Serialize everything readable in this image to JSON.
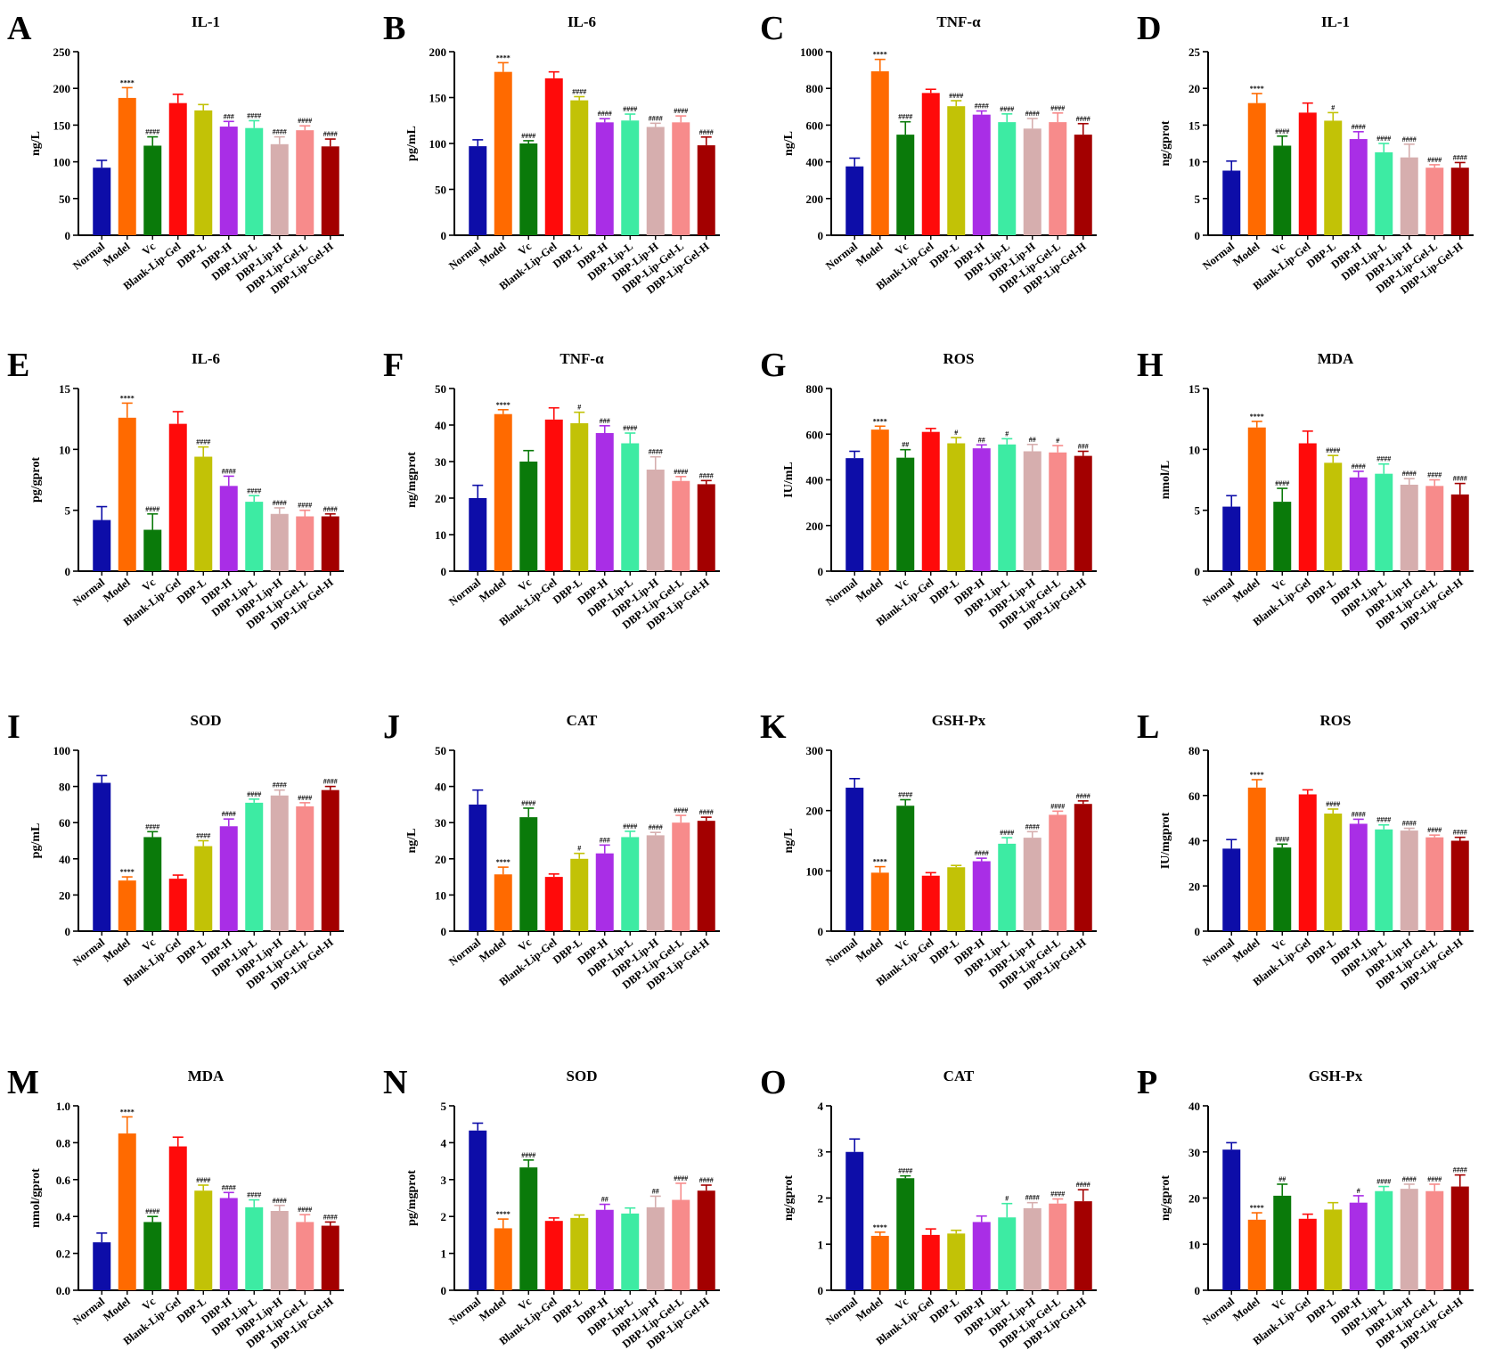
{
  "categories": [
    "Normal",
    "Model",
    "Vc",
    "Blank-Lip-Gel",
    "DBP-L",
    "DBP-H",
    "DBP-Lip-L",
    "DBP-Lip-H",
    "DBP-Lip-Gel-L",
    "DBP-Lip-Gel-H"
  ],
  "colors": [
    "#0d0da8",
    "#ff6a00",
    "#0a7a0a",
    "#ff0a0a",
    "#c2c206",
    "#a92ee6",
    "#3deba3",
    "#d6aeae",
    "#f78b8b",
    "#a30000"
  ],
  "chart_data": [
    {
      "type": "bar",
      "letter": "A",
      "title": "IL-1",
      "ylabel": "ng/L",
      "ylim": [
        0,
        250
      ],
      "ticks": [
        0,
        50,
        100,
        150,
        200,
        250
      ],
      "values": [
        92,
        187,
        122,
        180,
        170,
        148,
        146,
        124,
        143,
        121
      ],
      "errors": [
        10,
        14,
        12,
        12,
        8,
        7,
        10,
        10,
        6,
        10
      ],
      "sig": [
        "",
        "****",
        "####",
        "",
        "",
        "###",
        "####",
        "####",
        "####",
        "####"
      ]
    },
    {
      "type": "bar",
      "letter": "B",
      "title": "IL-6",
      "ylabel": "pg/mL",
      "ylim": [
        0,
        200
      ],
      "ticks": [
        0,
        50,
        100,
        150,
        200
      ],
      "values": [
        97,
        178,
        100,
        171,
        147,
        123,
        125,
        118,
        123,
        98
      ],
      "errors": [
        7,
        10,
        3,
        7,
        4,
        4,
        7,
        4,
        7,
        9
      ],
      "sig": [
        "",
        "****",
        "####",
        "",
        "####",
        "####",
        "####",
        "####",
        "####",
        "####"
      ]
    },
    {
      "type": "bar",
      "letter": "C",
      "title": "TNF-α",
      "ylabel": "ng/L",
      "ylim": [
        0,
        1000
      ],
      "ticks": [
        0,
        200,
        400,
        600,
        800,
        1000
      ],
      "values": [
        375,
        893,
        548,
        775,
        703,
        657,
        616,
        581,
        616,
        548
      ],
      "errors": [
        45,
        65,
        70,
        20,
        30,
        20,
        45,
        55,
        50,
        60
      ],
      "sig": [
        "",
        "****",
        "####",
        "",
        "####",
        "####",
        "####",
        "####",
        "####",
        "####"
      ]
    },
    {
      "type": "bar",
      "letter": "D",
      "title": "IL-1",
      "ylabel": "ng/gprot",
      "ylim": [
        0,
        25
      ],
      "ticks": [
        0,
        5,
        10,
        15,
        20,
        25
      ],
      "values": [
        8.8,
        18,
        12.2,
        16.7,
        15.6,
        13.1,
        11.3,
        10.6,
        9.2,
        9.2
      ],
      "errors": [
        1.3,
        1.3,
        1.3,
        1.3,
        1.1,
        1.0,
        1.2,
        1.8,
        0.4,
        0.7
      ],
      "sig": [
        "",
        "****",
        "####",
        "",
        "#",
        "####",
        "####",
        "####",
        "####",
        "####"
      ]
    },
    {
      "type": "bar",
      "letter": "E",
      "title": "IL-6",
      "ylabel": "pg/gprot",
      "ylim": [
        0,
        15
      ],
      "ticks": [
        0,
        5,
        10,
        15
      ],
      "values": [
        4.2,
        12.6,
        3.4,
        12.1,
        9.4,
        7.0,
        5.7,
        4.7,
        4.5,
        4.5
      ],
      "errors": [
        1.1,
        1.2,
        1.3,
        1.0,
        0.8,
        0.8,
        0.5,
        0.5,
        0.5,
        0.2
      ],
      "sig": [
        "",
        "****",
        "####",
        "",
        "####",
        "####",
        "####",
        "####",
        "####",
        "####"
      ]
    },
    {
      "type": "bar",
      "letter": "F",
      "title": "TNF-α",
      "ylabel": "ng/mgprot",
      "ylim": [
        0,
        50
      ],
      "ticks": [
        0,
        10,
        20,
        30,
        40,
        50
      ],
      "values": [
        20,
        43,
        30,
        41.5,
        40.5,
        37.8,
        35,
        27.8,
        24.7,
        23.8
      ],
      "errors": [
        3.5,
        1.2,
        3,
        3.2,
        3,
        2,
        2.8,
        3.5,
        1.2,
        1
      ],
      "sig": [
        "",
        "****",
        "",
        "",
        "#",
        "###",
        "####",
        "####",
        "####",
        "####"
      ]
    },
    {
      "type": "bar",
      "letter": "G",
      "title": "ROS",
      "ylabel": "IU/mL",
      "ylim": [
        0,
        800
      ],
      "ticks": [
        0,
        200,
        400,
        600,
        800
      ],
      "values": [
        495,
        620,
        497,
        610,
        560,
        538,
        555,
        525,
        520,
        505
      ],
      "errors": [
        30,
        15,
        35,
        15,
        25,
        15,
        25,
        30,
        30,
        20
      ],
      "sig": [
        "",
        "****",
        "##",
        "",
        "#",
        "##",
        "#",
        "##",
        "#",
        "###"
      ]
    },
    {
      "type": "bar",
      "letter": "H",
      "title": "MDA",
      "ylabel": "nmol/L",
      "ylim": [
        0,
        15
      ],
      "ticks": [
        0,
        5,
        10,
        15
      ],
      "values": [
        5.3,
        11.8,
        5.7,
        10.5,
        8.9,
        7.7,
        8.0,
        7.1,
        7.0,
        6.3
      ],
      "errors": [
        0.9,
        0.5,
        1.1,
        1.0,
        0.6,
        0.5,
        0.8,
        0.5,
        0.5,
        0.9
      ],
      "sig": [
        "",
        "****",
        "####",
        "",
        "####",
        "####",
        "####",
        "####",
        "####",
        "####"
      ]
    },
    {
      "type": "bar",
      "letter": "I",
      "title": "SOD",
      "ylabel": "pg/mL",
      "ylim": [
        0,
        100
      ],
      "ticks": [
        0,
        20,
        40,
        60,
        80,
        100
      ],
      "values": [
        82,
        28,
        52,
        29,
        47,
        58,
        71,
        75,
        69,
        78
      ],
      "errors": [
        4,
        2,
        3,
        2,
        3,
        4,
        2,
        3,
        2,
        2
      ],
      "sig": [
        "",
        "****",
        "####",
        "",
        "####",
        "####",
        "####",
        "####",
        "####",
        "####"
      ]
    },
    {
      "type": "bar",
      "letter": "J",
      "title": "CAT",
      "ylabel": "ng/L",
      "ylim": [
        0,
        50
      ],
      "ticks": [
        0,
        10,
        20,
        30,
        40,
        50
      ],
      "values": [
        35,
        15.7,
        31.5,
        15,
        20,
        21.5,
        26,
        26.5,
        30,
        30.5
      ],
      "errors": [
        4,
        2,
        2.5,
        0.8,
        1.5,
        2.3,
        1.6,
        0.8,
        2,
        1
      ],
      "sig": [
        "",
        "****",
        "####",
        "",
        "#",
        "###",
        "####",
        "####",
        "####",
        "####"
      ]
    },
    {
      "type": "bar",
      "letter": "K",
      "title": "GSH-Px",
      "ylabel": "ng/L",
      "ylim": [
        0,
        300
      ],
      "ticks": [
        0,
        100,
        200,
        300
      ],
      "values": [
        238,
        97,
        208,
        92,
        106,
        116,
        145,
        155,
        193,
        211
      ],
      "errors": [
        15,
        10,
        10,
        5,
        3,
        5,
        10,
        10,
        6,
        5
      ],
      "sig": [
        "",
        "****",
        "####",
        "",
        "",
        "####",
        "####",
        "####",
        "####",
        "####"
      ]
    },
    {
      "type": "bar",
      "letter": "L",
      "title": "ROS",
      "ylabel": "IU/mgprot",
      "ylim": [
        0,
        80
      ],
      "ticks": [
        0,
        20,
        40,
        60,
        80
      ],
      "values": [
        36.5,
        63.5,
        37,
        60.5,
        52,
        47.5,
        45,
        44.5,
        41.5,
        40
      ],
      "errors": [
        4,
        3.5,
        1.5,
        2,
        2,
        2,
        2,
        1,
        1,
        1.5
      ],
      "sig": [
        "",
        "****",
        "####",
        "",
        "####",
        "####",
        "####",
        "####",
        "####",
        "####"
      ]
    },
    {
      "type": "bar",
      "letter": "M",
      "title": "MDA",
      "ylabel": "nmol/gprot",
      "ylim": [
        0,
        1.0
      ],
      "ticks": [
        "0.0",
        "0.2",
        "0.4",
        "0.6",
        "0.8",
        "1.0"
      ],
      "values": [
        0.26,
        0.85,
        0.37,
        0.78,
        0.54,
        0.5,
        0.45,
        0.43,
        0.37,
        0.35
      ],
      "errors": [
        0.05,
        0.09,
        0.03,
        0.05,
        0.03,
        0.03,
        0.04,
        0.03,
        0.04,
        0.02
      ],
      "sig": [
        "",
        "****",
        "####",
        "",
        "####",
        "####",
        "####",
        "####",
        "####",
        "####"
      ]
    },
    {
      "type": "bar",
      "letter": "N",
      "title": "SOD",
      "ylabel": "pg/mgprot",
      "ylim": [
        0,
        5
      ],
      "ticks": [
        0,
        1,
        2,
        3,
        4,
        5
      ],
      "values": [
        4.33,
        1.68,
        3.33,
        1.88,
        1.96,
        2.18,
        2.08,
        2.25,
        2.45,
        2.7
      ],
      "errors": [
        0.2,
        0.25,
        0.2,
        0.08,
        0.08,
        0.15,
        0.15,
        0.3,
        0.45,
        0.15
      ],
      "sig": [
        "",
        "****",
        "####",
        "",
        "",
        "##",
        "",
        "##",
        "####",
        "####"
      ]
    },
    {
      "type": "bar",
      "letter": "O",
      "title": "CAT",
      "ylabel": "ng/gprot",
      "ylim": [
        0,
        4
      ],
      "ticks": [
        0,
        1,
        2,
        3,
        4
      ],
      "values": [
        3,
        1.18,
        2.43,
        1.2,
        1.23,
        1.48,
        1.58,
        1.78,
        1.88,
        1.93
      ],
      "errors": [
        0.28,
        0.08,
        0.05,
        0.13,
        0.07,
        0.13,
        0.3,
        0.12,
        0.1,
        0.25
      ],
      "sig": [
        "",
        "****",
        "####",
        "",
        "",
        "",
        "#",
        "####",
        "####",
        "####"
      ]
    },
    {
      "type": "bar",
      "letter": "P",
      "title": "GSH-Px",
      "ylabel": "ng/gprot",
      "ylim": [
        0,
        40
      ],
      "ticks": [
        0,
        10,
        20,
        30,
        40
      ],
      "values": [
        30.5,
        15.3,
        20.5,
        15.5,
        17.5,
        19,
        21.5,
        22,
        21.5,
        22.5
      ],
      "errors": [
        1.5,
        1.5,
        2.5,
        1,
        1.5,
        1.5,
        1,
        1,
        1.5,
        2.5
      ],
      "sig": [
        "",
        "****",
        "##",
        "",
        "",
        "#",
        "####",
        "####",
        "####",
        "####"
      ]
    }
  ]
}
